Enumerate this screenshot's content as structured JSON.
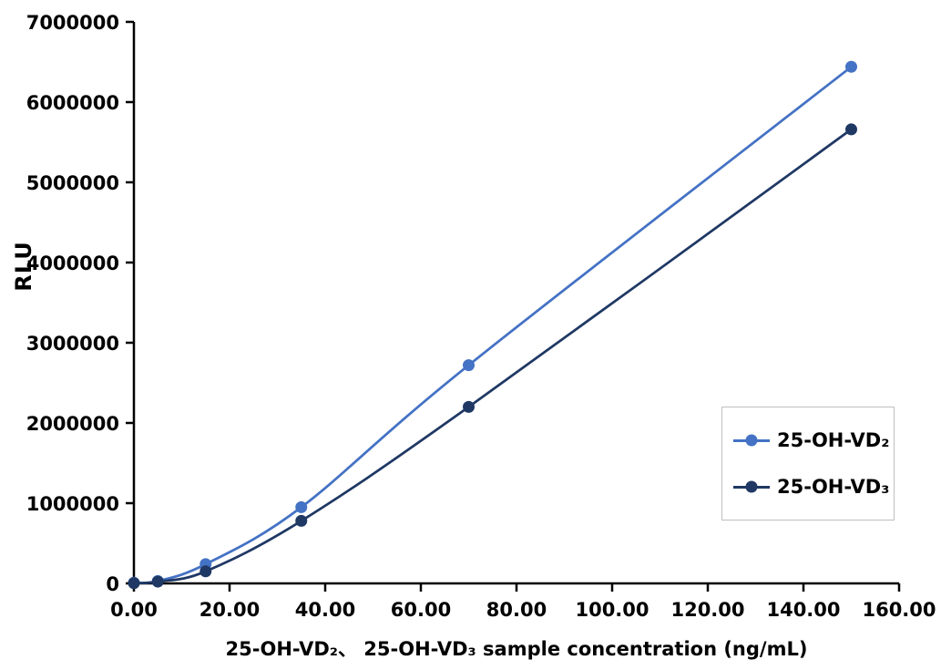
{
  "figure": {
    "background": "#ffffff",
    "axis_color": "#000000"
  },
  "legend": {
    "position": "right-middle",
    "items": [
      {
        "label": "25-OH-VD₂",
        "color": "#4472C4"
      },
      {
        "label": "25-OH-VD₃",
        "color": "#1F3864"
      }
    ]
  },
  "chart_data": {
    "type": "line",
    "title": "",
    "xlabel": "25-OH-VD₂、 25-OH-VD₃ sample concentration (ng/mL)",
    "ylabel": "RLU",
    "xlim": [
      0,
      160
    ],
    "ylim": [
      0,
      7000000
    ],
    "grid": false,
    "marker": "circle",
    "smooth": true,
    "x": [
      0,
      5,
      15,
      35,
      70,
      150
    ],
    "series": [
      {
        "name": "25-OH-VD₂",
        "color": "#4472C4",
        "values": [
          8000,
          30000,
          240000,
          950000,
          2720000,
          6440000
        ]
      },
      {
        "name": "25-OH-VD₃",
        "color": "#1F3864",
        "values": [
          3000,
          22000,
          150000,
          780000,
          2200000,
          5660000
        ]
      }
    ],
    "x_ticks": [
      0,
      20,
      40,
      60,
      80,
      100,
      120,
      140,
      160
    ],
    "x_tick_labels": [
      "0.00",
      "20.00",
      "40.00",
      "60.00",
      "80.00",
      "100.00",
      "120.00",
      "140.00",
      "160.00"
    ],
    "y_ticks": [
      0,
      1000000,
      2000000,
      3000000,
      4000000,
      5000000,
      6000000,
      7000000
    ],
    "y_tick_labels": [
      "0",
      "1000000",
      "2000000",
      "3000000",
      "4000000",
      "5000000",
      "6000000",
      "7000000"
    ]
  }
}
